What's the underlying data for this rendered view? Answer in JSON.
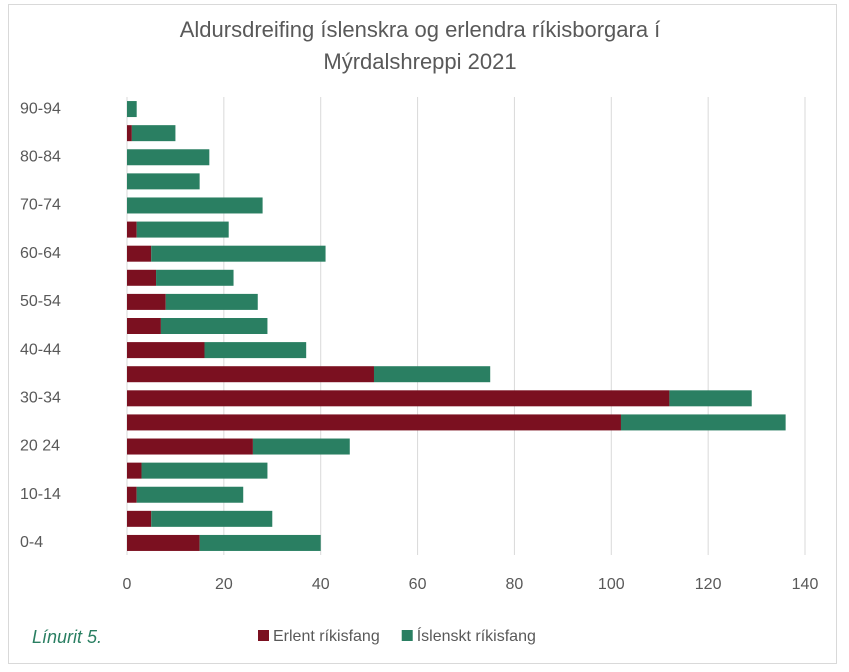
{
  "chart_data": {
    "type": "stacked_barh",
    "title": "Aldursdreifing íslenskra og erlendra ríkisborgara í Mýrdalshreppi 2021",
    "annotation": "Línurit 5.",
    "categories": [
      "0-4",
      null,
      "10-14",
      null,
      "20 24",
      null,
      "30-34",
      null,
      "40-44",
      null,
      "50-54",
      null,
      "60-64",
      null,
      "70-74",
      null,
      "80-84",
      null,
      "90-94"
    ],
    "series": [
      {
        "name": "Erlent ríkisfang",
        "color": "#7b1020",
        "values": [
          15,
          5,
          2,
          3,
          26,
          102,
          112,
          51,
          16,
          7,
          8,
          6,
          5,
          2,
          0,
          0,
          0,
          1,
          0
        ]
      },
      {
        "name": "Íslenskt ríkisfang",
        "color": "#2a7f62",
        "values": [
          25,
          25,
          22,
          26,
          20,
          34,
          17,
          24,
          21,
          22,
          19,
          16,
          36,
          19,
          28,
          15,
          17,
          9,
          2
        ]
      }
    ],
    "xlim": [
      0,
      140
    ],
    "xticks": [
      0,
      20,
      40,
      60,
      80,
      100,
      120,
      140
    ],
    "grid": true,
    "legend": "bottom"
  }
}
